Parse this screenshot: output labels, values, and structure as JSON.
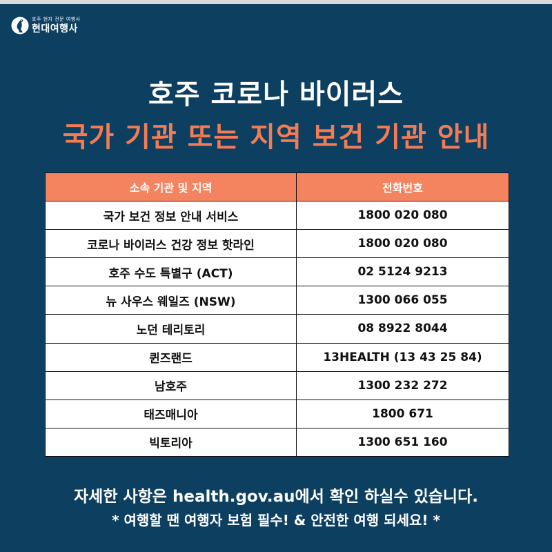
{
  "logo": {
    "tagline": "호주 현지 전문 여행사",
    "brand": "현대여행사"
  },
  "title": {
    "line1": "호주 코로나 바이러스",
    "line2": "국가 기관 또는 지역 보건 기관 안내"
  },
  "table": {
    "headers": [
      "소속 기관 및  지역",
      "전화번호"
    ],
    "rows": [
      [
        "국가 보건 정보 안내 서비스",
        "1800 020 080"
      ],
      [
        "코로나 바이러스 건강 정보 핫라인",
        "1800 020 080"
      ],
      [
        "호주 수도 특별구 (ACT)",
        "02 5124 9213"
      ],
      [
        "뉴 사우스 웨일즈 (NSW)",
        "1300 066 055"
      ],
      [
        "노던 테리토리",
        "08 8922 8044"
      ],
      [
        "퀸즈랜드",
        "13HEALTH (13 43 25 84)"
      ],
      [
        "남호주",
        "1300 232 272"
      ],
      [
        "태즈매니아",
        "1800 671"
      ],
      [
        "빅토리아",
        "1300 651 160"
      ]
    ]
  },
  "footer": {
    "line1": "자세한 사항은 health.gov.au에서 확인 하실수 있습니다.",
    "line2": "* 여행할 땐 여행자 보험 필수! & 안전한 여행 되세요!  *"
  },
  "colors": {
    "background": "#0d3f61",
    "accent": "#f47c55",
    "header_fill": "#f4845f"
  }
}
